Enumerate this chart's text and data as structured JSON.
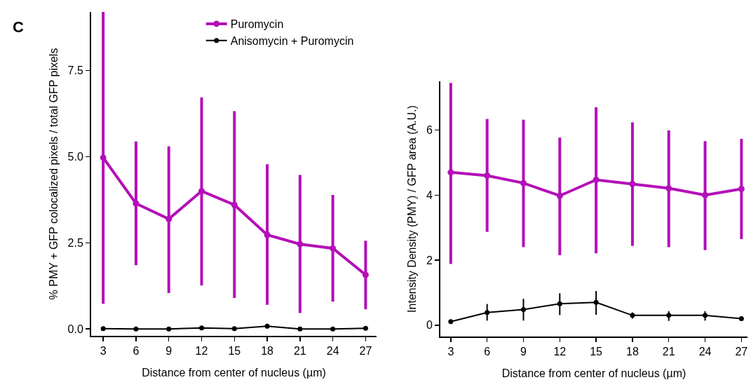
{
  "chart_data": [
    {
      "type": "line",
      "xlabel": "Distance from center of nucleus (µm)",
      "ylabel": "% PMY + GFP colocalized pixels / total GFP pixels",
      "annotations": [
        "C"
      ],
      "x": [
        3,
        6,
        9,
        12,
        15,
        18,
        21,
        24,
        27
      ],
      "xlim": [
        1.9,
        28
      ],
      "xticks": [
        3,
        6,
        9,
        12,
        15,
        18,
        21,
        24,
        27
      ],
      "ylim": [
        -0.2,
        9.2
      ],
      "yticks": [
        {
          "value": 0,
          "label": "0.0"
        },
        2.5,
        {
          "value": 5,
          "label": "5.0"
        },
        7.5
      ],
      "grid": false,
      "legend": "top right",
      "marker": "circle",
      "line_style": "solid",
      "series": [
        {
          "name": "Puromycin",
          "color": "#b40fb8",
          "values": [
            4.97,
            3.64,
            3.19,
            4.0,
            3.6,
            2.73,
            2.46,
            2.34,
            1.57
          ],
          "errors": [
            [
              0.73,
              9.2
            ],
            [
              1.85,
              5.44
            ],
            [
              1.04,
              5.3
            ],
            [
              1.26,
              6.72
            ],
            [
              0.9,
              6.32
            ],
            [
              0.7,
              4.78
            ],
            [
              0.46,
              4.47
            ],
            [
              0.79,
              3.89
            ],
            [
              0.57,
              2.56
            ]
          ]
        },
        {
          "name": "Anisomycin + Puromycin",
          "color": "#000000",
          "values": [
            0.01,
            0.0,
            0.0,
            0.03,
            0.01,
            0.08,
            0.0,
            0.0,
            0.02
          ],
          "errors": [
            null,
            null,
            null,
            null,
            null,
            [
              0.01,
              0.15
            ],
            null,
            null,
            null
          ]
        }
      ]
    },
    {
      "type": "line",
      "xlabel": "Distance from center of nucleus (µm)",
      "ylabel": "Intensity Density (PMY) / GFP area (A.U.)",
      "x": [
        3,
        6,
        9,
        12,
        15,
        18,
        21,
        24,
        27
      ],
      "xlim": [
        2.14,
        27.5
      ],
      "xticks": [
        3,
        6,
        9,
        12,
        15,
        18,
        21,
        24,
        27
      ],
      "ylim": [
        -0.35,
        7.5
      ],
      "yticks": [
        0,
        2,
        4,
        6
      ],
      "grid": false,
      "marker": "circle",
      "line_style": "solid",
      "series": [
        {
          "color": "#b40fb8",
          "values": [
            4.7,
            4.6,
            4.37,
            3.98,
            4.47,
            4.34,
            4.21,
            4.0,
            4.19
          ],
          "errors": [
            [
              1.88,
              7.45
            ],
            [
              2.87,
              6.34
            ],
            [
              2.4,
              6.32
            ],
            [
              2.15,
              5.77
            ],
            [
              2.21,
              6.7
            ],
            [
              2.44,
              6.24
            ],
            [
              2.4,
              5.99
            ],
            [
              2.31,
              5.66
            ],
            [
              2.65,
              5.73
            ]
          ]
        },
        {
          "color": "#000000",
          "values": [
            0.11,
            0.39,
            0.48,
            0.66,
            0.7,
            0.3,
            0.3,
            0.3,
            0.2
          ],
          "errors": [
            [
              0.07,
              0.16
            ],
            [
              0.14,
              0.65
            ],
            [
              0.14,
              0.81
            ],
            [
              0.31,
              0.98
            ],
            [
              0.32,
              1.05
            ],
            [
              0.2,
              0.39
            ],
            [
              0.13,
              0.43
            ],
            [
              0.14,
              0.43
            ],
            [
              0.13,
              0.27
            ]
          ]
        }
      ]
    }
  ]
}
